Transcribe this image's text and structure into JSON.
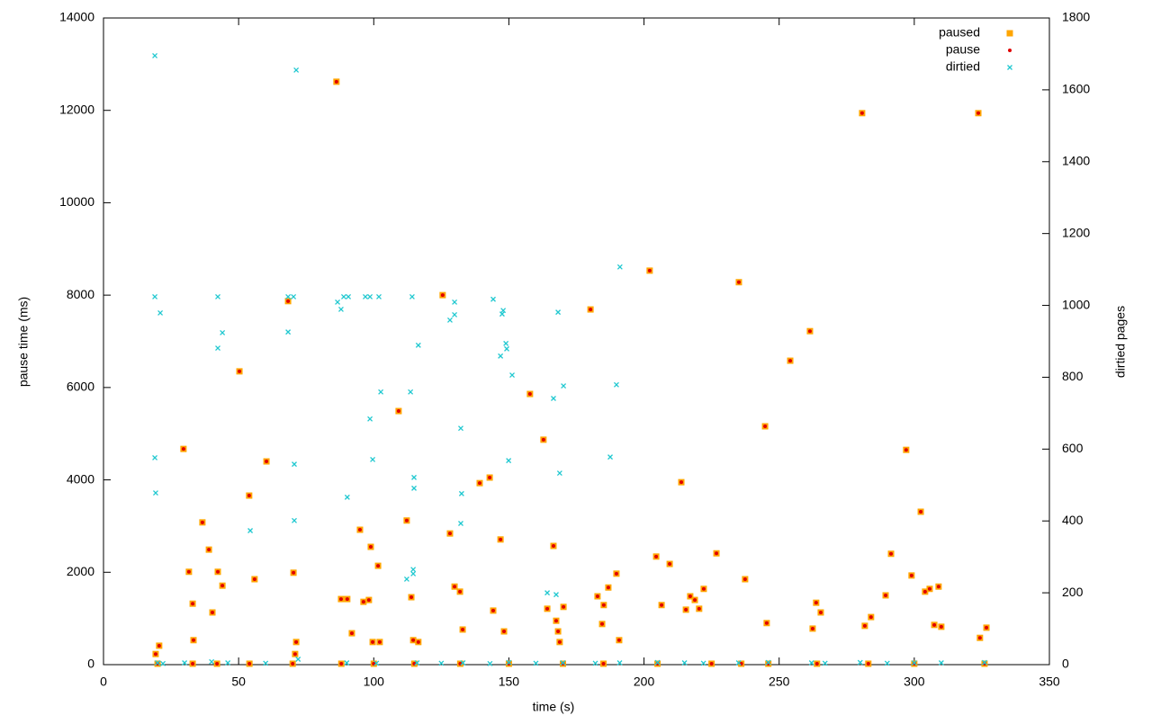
{
  "chart_data": {
    "type": "scatter",
    "xlabel": "time (s)",
    "ylabel": "pause time (ms)",
    "y2label": "dirtied pages",
    "xlim": [
      0,
      350
    ],
    "xticks": [
      0,
      50,
      100,
      150,
      200,
      250,
      300,
      350
    ],
    "ylim": [
      0,
      14000
    ],
    "yticks": [
      0,
      2000,
      4000,
      6000,
      8000,
      10000,
      12000,
      14000
    ],
    "y2lim": [
      0,
      1800
    ],
    "y2ticks": [
      0,
      200,
      400,
      600,
      800,
      1000,
      1200,
      1400,
      1600,
      1800
    ],
    "legend": "top-right",
    "series": [
      {
        "name": "paused",
        "color": "#ffa500",
        "marker": "square",
        "x": [
          19.3,
          20.6,
          29.6,
          31.6,
          33.0,
          33.3,
          36.6,
          39.0,
          40.3,
          42.3,
          44.0,
          50.3,
          53.9,
          55.9,
          60.3,
          68.3,
          70.3,
          71.3,
          70.9,
          86.2,
          87.9,
          90.2,
          91.9,
          94.9,
          96.2,
          98.2,
          98.9,
          99.6,
          101.6,
          102.2,
          109.2,
          112.2,
          113.9,
          114.6,
          116.5,
          125.5,
          128.2,
          129.9,
          131.9,
          132.9,
          139.2,
          142.9,
          144.2,
          146.9,
          148.2,
          157.8,
          162.8,
          164.2,
          166.5,
          167.5,
          168.2,
          168.8,
          170.2,
          180.2,
          182.8,
          184.5,
          185.1,
          186.8,
          189.8,
          190.8,
          202.1,
          204.5,
          206.5,
          209.5,
          213.8,
          215.5,
          217.1,
          218.8,
          220.4,
          222.1,
          226.8,
          235.1,
          237.4,
          245.4,
          244.8,
          254.1,
          261.4,
          262.4,
          263.7,
          265.4,
          280.7,
          281.7,
          284.0,
          289.4,
          291.4,
          297.0,
          299.0,
          302.4,
          304.0,
          305.7,
          307.4,
          309.0,
          310.0,
          323.7,
          324.3,
          326.7,
          20,
          33,
          42,
          54,
          70,
          88,
          100,
          115,
          132,
          150,
          170,
          185,
          205,
          225,
          236,
          246,
          264,
          283,
          300,
          326
        ],
        "values": [
          230,
          410,
          4670,
          2010,
          1320,
          530,
          3080,
          2490,
          1130,
          2010,
          1710,
          6350,
          3660,
          1850,
          4400,
          7870,
          1990,
          490,
          230,
          12620,
          1420,
          1420,
          680,
          2920,
          1360,
          1400,
          2550,
          490,
          2140,
          490,
          5490,
          3120,
          1460,
          530,
          490,
          8000,
          2840,
          1690,
          1580,
          760,
          3930,
          4050,
          1170,
          2710,
          720,
          5860,
          4870,
          1210,
          2570,
          950,
          720,
          490,
          1250,
          7690,
          1480,
          880,
          1290,
          1670,
          1970,
          530,
          8530,
          2340,
          1290,
          2180,
          3950,
          1190,
          1480,
          1400,
          1210,
          1640,
          2410,
          8280,
          1850,
          900,
          5160,
          6580,
          7220,
          780,
          1340,
          1130,
          11940,
          840,
          1030,
          1500,
          2400,
          4650,
          1930,
          3310,
          1580,
          1640,
          860,
          1690,
          820,
          11940,
          580,
          800,
          20,
          20,
          20,
          20,
          20,
          20,
          20,
          20,
          20,
          20,
          20,
          20,
          20,
          20,
          20,
          20,
          20,
          20,
          20,
          20
        ]
      },
      {
        "name": "pause",
        "color": "#e00000",
        "marker": "dot",
        "x": [
          19.3,
          20.6,
          29.6,
          31.6,
          33.0,
          33.3,
          36.6,
          39.0,
          40.3,
          42.3,
          44.0,
          50.3,
          53.9,
          55.9,
          60.3,
          68.3,
          70.3,
          71.3,
          70.9,
          86.2,
          87.9,
          90.2,
          91.9,
          94.9,
          96.2,
          98.2,
          98.9,
          99.6,
          101.6,
          102.2,
          109.2,
          112.2,
          113.9,
          114.6,
          116.5,
          125.5,
          128.2,
          129.9,
          131.9,
          132.9,
          139.2,
          142.9,
          144.2,
          146.9,
          148.2,
          157.8,
          162.8,
          164.2,
          166.5,
          167.5,
          168.2,
          168.8,
          170.2,
          180.2,
          182.8,
          184.5,
          185.1,
          186.8,
          189.8,
          190.8,
          202.1,
          204.5,
          206.5,
          209.5,
          213.8,
          215.5,
          217.1,
          218.8,
          220.4,
          222.1,
          226.8,
          235.1,
          237.4,
          245.4,
          244.8,
          254.1,
          261.4,
          262.4,
          263.7,
          265.4,
          280.7,
          281.7,
          284.0,
          289.4,
          291.4,
          297.0,
          299.0,
          302.4,
          304.0,
          305.7,
          307.4,
          309.0,
          310.0,
          323.7,
          324.3,
          326.7,
          20,
          33,
          42,
          54,
          70,
          88,
          100,
          115,
          132,
          150,
          170,
          185,
          205,
          225,
          236,
          246,
          264,
          283,
          300,
          326
        ],
        "values": [
          230,
          410,
          4670,
          2010,
          1320,
          530,
          3080,
          2490,
          1130,
          2010,
          1710,
          6350,
          3660,
          1850,
          4400,
          7870,
          1990,
          490,
          230,
          12620,
          1420,
          1420,
          680,
          2920,
          1360,
          1400,
          2550,
          490,
          2140,
          490,
          5490,
          3120,
          1460,
          530,
          490,
          8000,
          2840,
          1690,
          1580,
          760,
          3930,
          4050,
          1170,
          2710,
          720,
          5860,
          4870,
          1210,
          2570,
          950,
          720,
          490,
          1250,
          7690,
          1480,
          880,
          1290,
          1670,
          1970,
          530,
          8530,
          2340,
          1290,
          2180,
          3950,
          1190,
          1480,
          1400,
          1210,
          1640,
          2410,
          8280,
          1850,
          900,
          5160,
          6580,
          7220,
          780,
          1340,
          1130,
          11940,
          840,
          1030,
          1500,
          2400,
          4650,
          1930,
          3310,
          1580,
          1640,
          860,
          1690,
          820,
          11940,
          580,
          800,
          20,
          20,
          20,
          20,
          20,
          20,
          20,
          20,
          20,
          20,
          20,
          20,
          20,
          20,
          20,
          20,
          20,
          20,
          20,
          20
        ]
      },
      {
        "name": "dirtied",
        "color": "#20c8d0",
        "marker": "cross",
        "axis": "y2",
        "x": [
          19.0,
          19.0,
          21.0,
          19.0,
          19.3,
          42.3,
          42.3,
          44.0,
          54.3,
          68.3,
          68.3,
          70.3,
          71.3,
          70.6,
          70.6,
          86.6,
          87.9,
          88.9,
          90.6,
          90.2,
          96.9,
          98.6,
          98.6,
          99.6,
          101.9,
          102.6,
          114.2,
          113.6,
          114.9,
          114.9,
          114.6,
          114.6,
          112.2,
          116.5,
          128.2,
          129.9,
          129.9,
          132.2,
          132.5,
          132.2,
          144.2,
          146.9,
          147.5,
          147.9,
          148.9,
          149.2,
          151.2,
          149.9,
          164.2,
          166.5,
          167.5,
          168.2,
          168.8,
          170.2,
          187.5,
          189.8,
          191.1,
          20,
          22,
          30,
          40,
          46,
          60,
          72,
          90,
          101,
          116,
          125,
          133,
          143,
          150,
          160,
          170,
          182,
          191,
          205,
          215,
          222,
          235,
          246,
          262,
          267,
          280,
          290,
          300,
          310,
          326
        ],
        "values": [
          1695,
          1024,
          979,
          576,
          478,
          1024,
          881,
          924,
          373,
          1024,
          926,
          1024,
          1655,
          558,
          401,
          1009,
          989,
          1024,
          1024,
          466,
          1024,
          1024,
          684,
          571,
          1024,
          759,
          1024,
          759,
          521,
          491,
          265,
          253,
          238,
          889,
          959,
          1009,
          974,
          658,
          476,
          393,
          1017,
          859,
          976,
          986,
          894,
          879,
          806,
          568,
          200,
          741,
          195,
          981,
          533,
          776,
          578,
          779,
          1107,
          5,
          3,
          5,
          8,
          5,
          4,
          15,
          5,
          4,
          5,
          4,
          5,
          3,
          6,
          4,
          5,
          4,
          5,
          6,
          5,
          4,
          5,
          6,
          5,
          4,
          6,
          4,
          5,
          5,
          6
        ]
      }
    ]
  }
}
